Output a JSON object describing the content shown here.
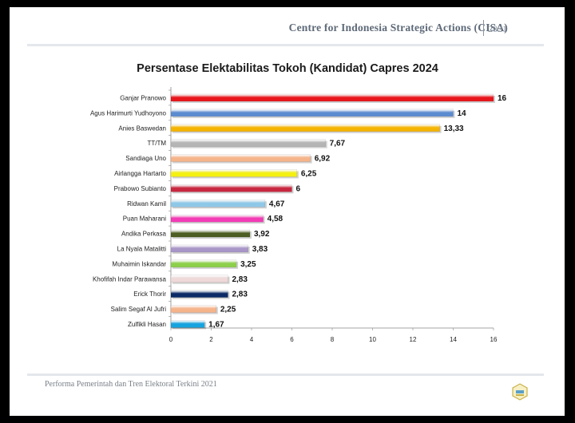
{
  "header": {
    "organization": "Centre for Indonesia Strategic Actions (CISA)",
    "year": "2021"
  },
  "footer": {
    "text": "Performa Pemerintah dan Tren Elektoral Terkini 2021"
  },
  "chart_data": {
    "type": "bar",
    "orientation": "horizontal",
    "title": "Persentase Elektabilitas Tokoh (Kandidat) Capres 2024",
    "xlabel": "",
    "ylabel": "",
    "xlim": [
      0,
      16
    ],
    "ticks": [
      0,
      2,
      4,
      6,
      8,
      10,
      12,
      14,
      16
    ],
    "grid": false,
    "legend": "none",
    "categories": [
      "Ganjar Pranowo",
      "Agus Harimurti Yudhoyono",
      "Anies Baswedan",
      "TT/TM",
      "Sandiaga Uno",
      "Airlangga Hartarto",
      "Prabowo Subianto",
      "Ridwan Kamil",
      "Puan Maharani",
      "Andika Perkasa",
      "La Nyala Matalitti",
      "Muhaimin Iskandar",
      "Khofifah Indar Parawansa",
      "Erick Thorir",
      "Salim Segaf Al Jufri",
      "Zulfikli Hasan"
    ],
    "values": [
      16,
      14,
      13.33,
      7.67,
      6.92,
      6.25,
      6,
      4.67,
      4.58,
      3.92,
      3.83,
      3.25,
      2.83,
      2.83,
      2.25,
      1.67
    ],
    "value_labels": [
      "16",
      "14",
      "13,33",
      "7,67",
      "6,92",
      "6,25",
      "6",
      "4,67",
      "4,58",
      "3,92",
      "3,83",
      "3,25",
      "2,83",
      "2,83",
      "2,25",
      "1,67"
    ],
    "colors": [
      "#e8151b",
      "#5b8bd0",
      "#f5b400",
      "#b5b5b5",
      "#f6b48a",
      "#f4f010",
      "#c8273f",
      "#8ec8e8",
      "#f23bb5",
      "#4d5e22",
      "#a996c8",
      "#8dd04a",
      "#efd8d8",
      "#0c2a66",
      "#f6b48a",
      "#16a4e0"
    ]
  }
}
